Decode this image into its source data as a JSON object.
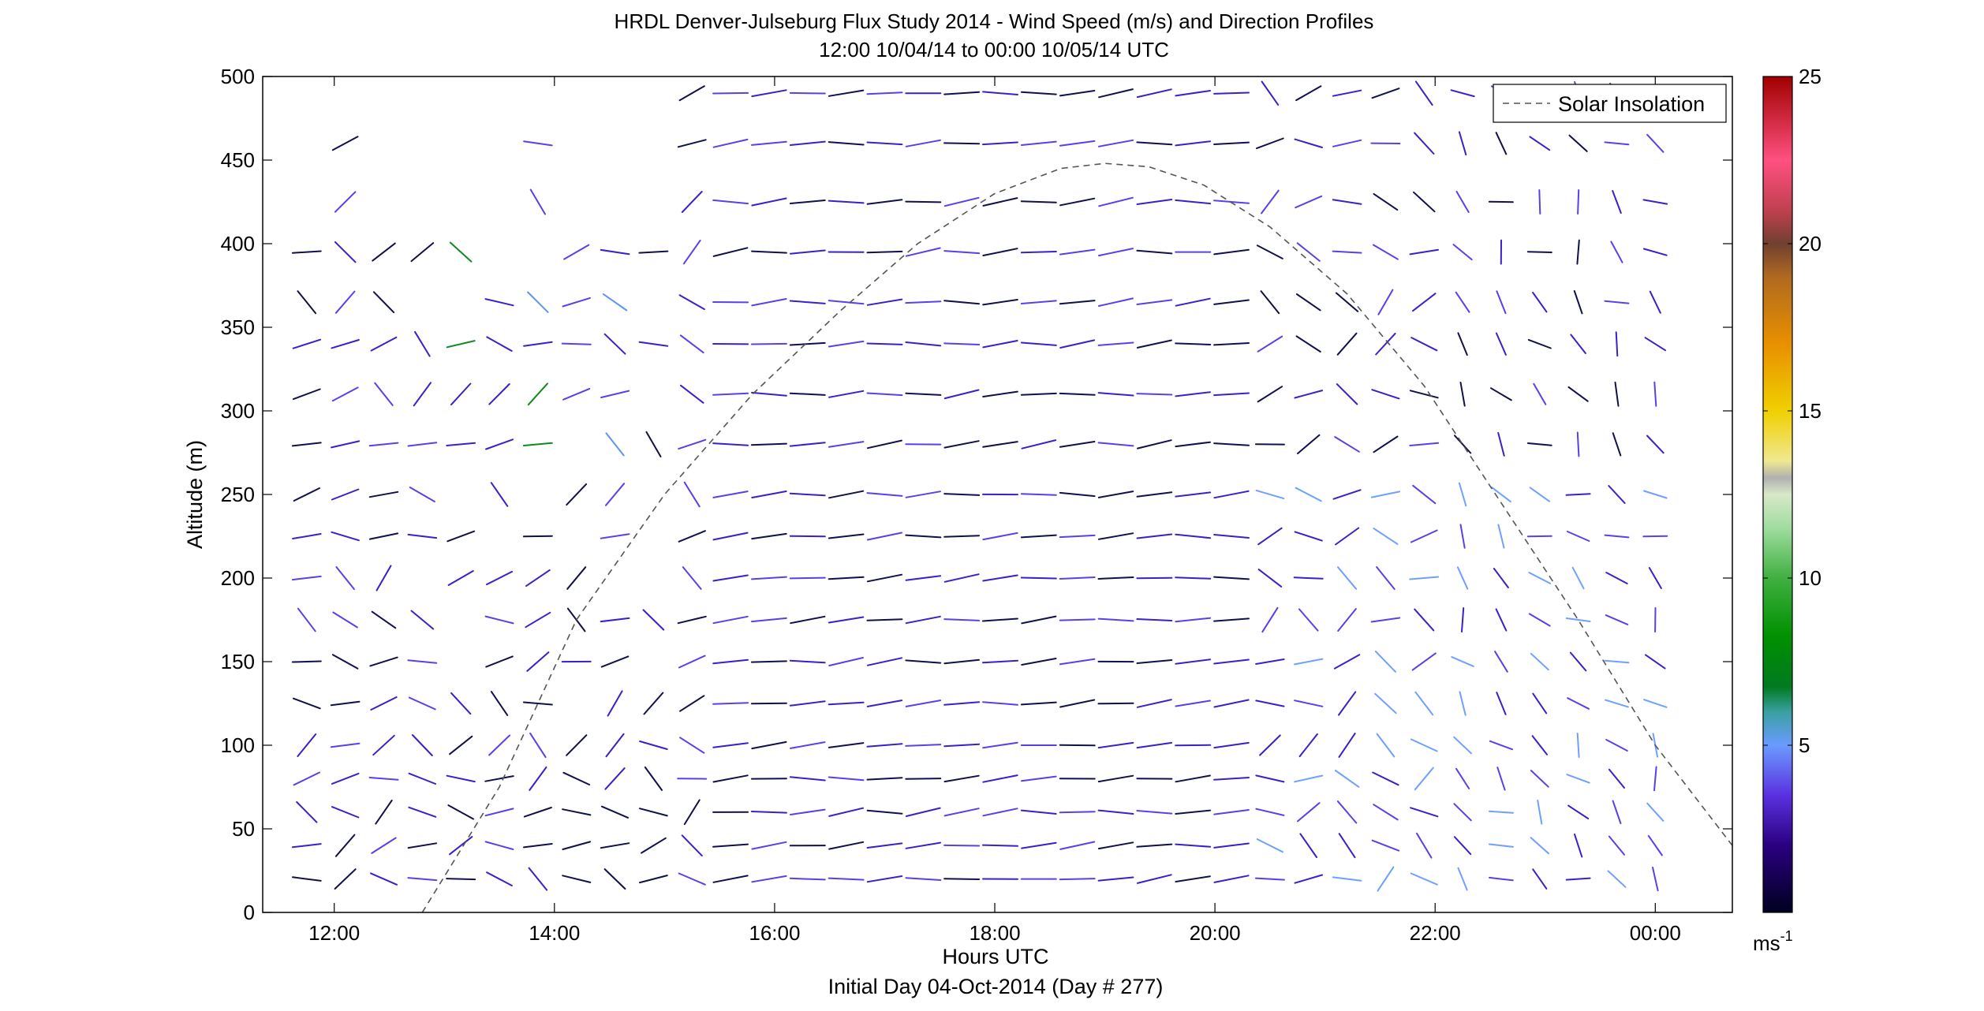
{
  "chart_data": {
    "type": "wind-barb-profile",
    "title": "HRDL Denver-Julseburg Flux Study 2014 - Wind Speed (m/s) and Direction Profiles",
    "subtitle": "12:00 10/04/14 to 00:00 10/05/14  UTC",
    "xlabel": "Hours UTC",
    "xlabel2": "Initial Day 04-Oct-2014 (Day # 277)",
    "ylabel": "Altitude (m)",
    "x_ticks": [
      "12:00",
      "14:00",
      "16:00",
      "18:00",
      "20:00",
      "22:00",
      "00:00"
    ],
    "x_tick_hours": [
      12,
      14,
      16,
      18,
      20,
      22,
      24
    ],
    "xlim_hours": [
      11.35,
      24.7
    ],
    "ylim": [
      0,
      500
    ],
    "y_ticks": [
      "0",
      "50",
      "100",
      "150",
      "200",
      "250",
      "300",
      "350",
      "400",
      "450",
      "500"
    ],
    "y_tick_values": [
      0,
      50,
      100,
      150,
      200,
      250,
      300,
      350,
      400,
      450,
      500
    ],
    "legend": {
      "label": "Solar Insolation",
      "position": "top-right",
      "line_style": "dashed"
    },
    "colorbar": {
      "range": [
        0,
        25
      ],
      "ticks": [
        "5",
        "10",
        "15",
        "20",
        "25"
      ],
      "tick_values": [
        5,
        10,
        15,
        20,
        25
      ],
      "unit_base": "ms",
      "unit_exp": "-1"
    },
    "solar_insolation": {
      "hours": [
        12.8,
        13.5,
        14.2,
        15.0,
        15.8,
        16.6,
        17.3,
        18.0,
        18.6,
        19.0,
        19.4,
        19.9,
        20.5,
        21.2,
        21.9,
        22.6,
        23.3,
        24.0,
        24.7
      ],
      "altitude_scaled": [
        0,
        75,
        175,
        250,
        310,
        360,
        400,
        430,
        445,
        448,
        446,
        435,
        410,
        370,
        315,
        245,
        175,
        100,
        40
      ]
    },
    "wind_vectors": {
      "times_hours": [
        11.75,
        12.1,
        12.45,
        12.8,
        13.15,
        13.5,
        13.85,
        14.2,
        14.55,
        14.9,
        15.25,
        15.6,
        15.95,
        16.3,
        16.65,
        17.0,
        17.35,
        17.7,
        18.05,
        18.4,
        18.75,
        19.1,
        19.45,
        19.8,
        20.15,
        20.5,
        20.85,
        21.2,
        21.55,
        21.9,
        22.25,
        22.6,
        22.95,
        23.3,
        23.65,
        24.0
      ],
      "altitudes_m": [
        20,
        40,
        60,
        80,
        100,
        125,
        150,
        175,
        200,
        225,
        250,
        280,
        310,
        340,
        365,
        395,
        425,
        460,
        490
      ],
      "note": "dense grid of direction vectors colored by speed"
    }
  }
}
